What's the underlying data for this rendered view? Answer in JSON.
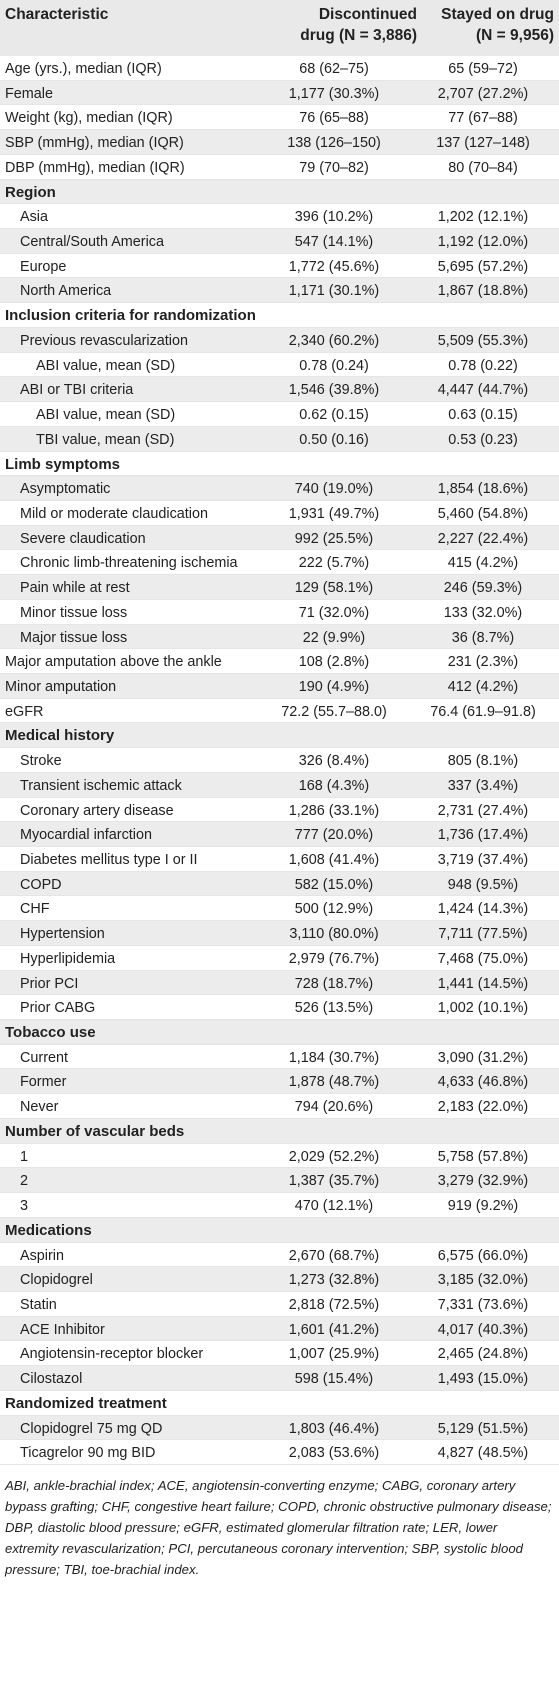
{
  "table": {
    "headers": {
      "characteristic": "Characteristic",
      "discontinued_line1": "Discontinued",
      "discontinued_line2": "drug (N = 3,886)",
      "stayed_line1": "Stayed on drug",
      "stayed_line2": "(N = 9,956)"
    },
    "rows": [
      {
        "label": "Age (yrs.), median (IQR)",
        "disc": "68 (62–75)",
        "stay": "65 (59–72)",
        "level": 0
      },
      {
        "label": "Female",
        "disc": "1,177 (30.3%)",
        "stay": "2,707 (27.2%)",
        "level": 0
      },
      {
        "label": "Weight (kg), median (IQR)",
        "disc": "76 (65–88)",
        "stay": "77 (67–88)",
        "level": 0
      },
      {
        "label": "SBP (mmHg), median (IQR)",
        "disc": "138 (126–150)",
        "stay": "137 (127–148)",
        "level": 0
      },
      {
        "label": "DBP (mmHg), median (IQR)",
        "disc": "79 (70–82)",
        "stay": "80 (70–84)",
        "level": 0
      },
      {
        "label": "Region",
        "disc": "",
        "stay": "",
        "level": 0,
        "section": true
      },
      {
        "label": "Asia",
        "disc": "396 (10.2%)",
        "stay": "1,202 (12.1%)",
        "level": 1
      },
      {
        "label": "Central/South America",
        "disc": "547 (14.1%)",
        "stay": "1,192 (12.0%)",
        "level": 1
      },
      {
        "label": "Europe",
        "disc": "1,772 (45.6%)",
        "stay": "5,695 (57.2%)",
        "level": 1
      },
      {
        "label": "North America",
        "disc": "1,171 (30.1%)",
        "stay": "1,867 (18.8%)",
        "level": 1
      },
      {
        "label": "Inclusion criteria for randomization",
        "disc": "",
        "stay": "",
        "level": 0,
        "section": true
      },
      {
        "label": "Previous revascularization",
        "disc": "2,340 (60.2%)",
        "stay": "5,509 (55.3%)",
        "level": 1
      },
      {
        "label": "ABI value, mean (SD)",
        "disc": "0.78 (0.24)",
        "stay": "0.78 (0.22)",
        "level": 2
      },
      {
        "label": "ABI or TBI criteria",
        "disc": "1,546 (39.8%)",
        "stay": "4,447 (44.7%)",
        "level": 1
      },
      {
        "label": "ABI value, mean (SD)",
        "disc": "0.62 (0.15)",
        "stay": "0.63 (0.15)",
        "level": 2
      },
      {
        "label": "TBI value, mean (SD)",
        "disc": "0.50 (0.16)",
        "stay": "0.53 (0.23)",
        "level": 2
      },
      {
        "label": "Limb symptoms",
        "disc": "",
        "stay": "",
        "level": 0,
        "section": true
      },
      {
        "label": "Asymptomatic",
        "disc": "740 (19.0%)",
        "stay": "1,854 (18.6%)",
        "level": 1
      },
      {
        "label": "Mild or moderate claudication",
        "disc": "1,931 (49.7%)",
        "stay": "5,460 (54.8%)",
        "level": 1
      },
      {
        "label": "Severe claudication",
        "disc": "992 (25.5%)",
        "stay": "2,227 (22.4%)",
        "level": 1
      },
      {
        "label": "Chronic limb-threatening ischemia",
        "disc": "222 (5.7%)",
        "stay": "415 (4.2%)",
        "level": 1
      },
      {
        "label": "Pain while at rest",
        "disc": "129 (58.1%)",
        "stay": "246 (59.3%)",
        "level": 1
      },
      {
        "label": "Minor tissue loss",
        "disc": "71 (32.0%)",
        "stay": "133 (32.0%)",
        "level": 1
      },
      {
        "label": "Major tissue loss",
        "disc": "22 (9.9%)",
        "stay": "36 (8.7%)",
        "level": 1
      },
      {
        "label": "Major amputation above the ankle",
        "disc": "108 (2.8%)",
        "stay": "231 (2.3%)",
        "level": 0
      },
      {
        "label": "Minor amputation",
        "disc": "190 (4.9%)",
        "stay": "412 (4.2%)",
        "level": 0
      },
      {
        "label": "eGFR",
        "disc": "72.2 (55.7–88.0)",
        "stay": "76.4 (61.9–91.8)",
        "level": 0
      },
      {
        "label": "Medical history",
        "disc": "",
        "stay": "",
        "level": 0,
        "section": true
      },
      {
        "label": "Stroke",
        "disc": "326 (8.4%)",
        "stay": "805 (8.1%)",
        "level": 1
      },
      {
        "label": "Transient ischemic attack",
        "disc": "168 (4.3%)",
        "stay": "337 (3.4%)",
        "level": 1
      },
      {
        "label": "Coronary artery disease",
        "disc": "1,286 (33.1%)",
        "stay": "2,731 (27.4%)",
        "level": 1
      },
      {
        "label": "Myocardial infarction",
        "disc": "777 (20.0%)",
        "stay": "1,736 (17.4%)",
        "level": 1
      },
      {
        "label": "Diabetes mellitus type I or II",
        "disc": "1,608 (41.4%)",
        "stay": "3,719 (37.4%)",
        "level": 1
      },
      {
        "label": "COPD",
        "disc": "582 (15.0%)",
        "stay": "948 (9.5%)",
        "level": 1
      },
      {
        "label": "CHF",
        "disc": "500 (12.9%)",
        "stay": "1,424 (14.3%)",
        "level": 1
      },
      {
        "label": "Hypertension",
        "disc": "3,110 (80.0%)",
        "stay": "7,711 (77.5%)",
        "level": 1
      },
      {
        "label": "Hyperlipidemia",
        "disc": "2,979 (76.7%)",
        "stay": "7,468 (75.0%)",
        "level": 1
      },
      {
        "label": "Prior PCI",
        "disc": "728 (18.7%)",
        "stay": "1,441 (14.5%)",
        "level": 1
      },
      {
        "label": "Prior CABG",
        "disc": "526 (13.5%)",
        "stay": "1,002 (10.1%)",
        "level": 1
      },
      {
        "label": "Tobacco use",
        "disc": "",
        "stay": "",
        "level": 0,
        "section": true
      },
      {
        "label": "Current",
        "disc": "1,184 (30.7%)",
        "stay": "3,090 (31.2%)",
        "level": 1
      },
      {
        "label": "Former",
        "disc": "1,878 (48.7%)",
        "stay": "4,633 (46.8%)",
        "level": 1
      },
      {
        "label": "Never",
        "disc": "794 (20.6%)",
        "stay": "2,183 (22.0%)",
        "level": 1
      },
      {
        "label": "Number of vascular beds",
        "disc": "",
        "stay": "",
        "level": 0,
        "section": true
      },
      {
        "label": "1",
        "disc": "2,029 (52.2%)",
        "stay": "5,758 (57.8%)",
        "level": 1
      },
      {
        "label": "2",
        "disc": "1,387 (35.7%)",
        "stay": "3,279 (32.9%)",
        "level": 1
      },
      {
        "label": "3",
        "disc": "470 (12.1%)",
        "stay": "919 (9.2%)",
        "level": 1
      },
      {
        "label": "Medications",
        "disc": "",
        "stay": "",
        "level": 0,
        "section": true
      },
      {
        "label": "Aspirin",
        "disc": "2,670 (68.7%)",
        "stay": "6,575 (66.0%)",
        "level": 1
      },
      {
        "label": "Clopidogrel",
        "disc": "1,273 (32.8%)",
        "stay": "3,185 (32.0%)",
        "level": 1
      },
      {
        "label": "Statin",
        "disc": "2,818 (72.5%)",
        "stay": "7,331 (73.6%)",
        "level": 1
      },
      {
        "label": "ACE Inhibitor",
        "disc": "1,601 (41.2%)",
        "stay": "4,017 (40.3%)",
        "level": 1
      },
      {
        "label": "Angiotensin-receptor blocker",
        "disc": "1,007 (25.9%)",
        "stay": "2,465 (24.8%)",
        "level": 1
      },
      {
        "label": "Cilostazol",
        "disc": "598 (15.4%)",
        "stay": "1,493 (15.0%)",
        "level": 1
      },
      {
        "label": "Randomized treatment",
        "disc": "",
        "stay": "",
        "level": 0,
        "section": true
      },
      {
        "label": "Clopidogrel 75 mg QD",
        "disc": "1,803 (46.4%)",
        "stay": "5,129 (51.5%)",
        "level": 1
      },
      {
        "label": "Ticagrelor 90 mg BID",
        "disc": "2,083 (53.6%)",
        "stay": "4,827 (48.5%)",
        "level": 1
      }
    ]
  },
  "footnote": "ABI, ankle-brachial index; ACE, angiotensin-converting enzyme; CABG, coronary artery bypass grafting; CHF, congestive heart failure; COPD, chronic obstructive pulmonary disease; DBP, diastolic blood pressure; eGFR, estimated glomerular filtration rate; LER, lower extremity revascularization; PCI, percutaneous coronary intervention; SBP, systolic blood pressure; TBI, toe-brachial index."
}
